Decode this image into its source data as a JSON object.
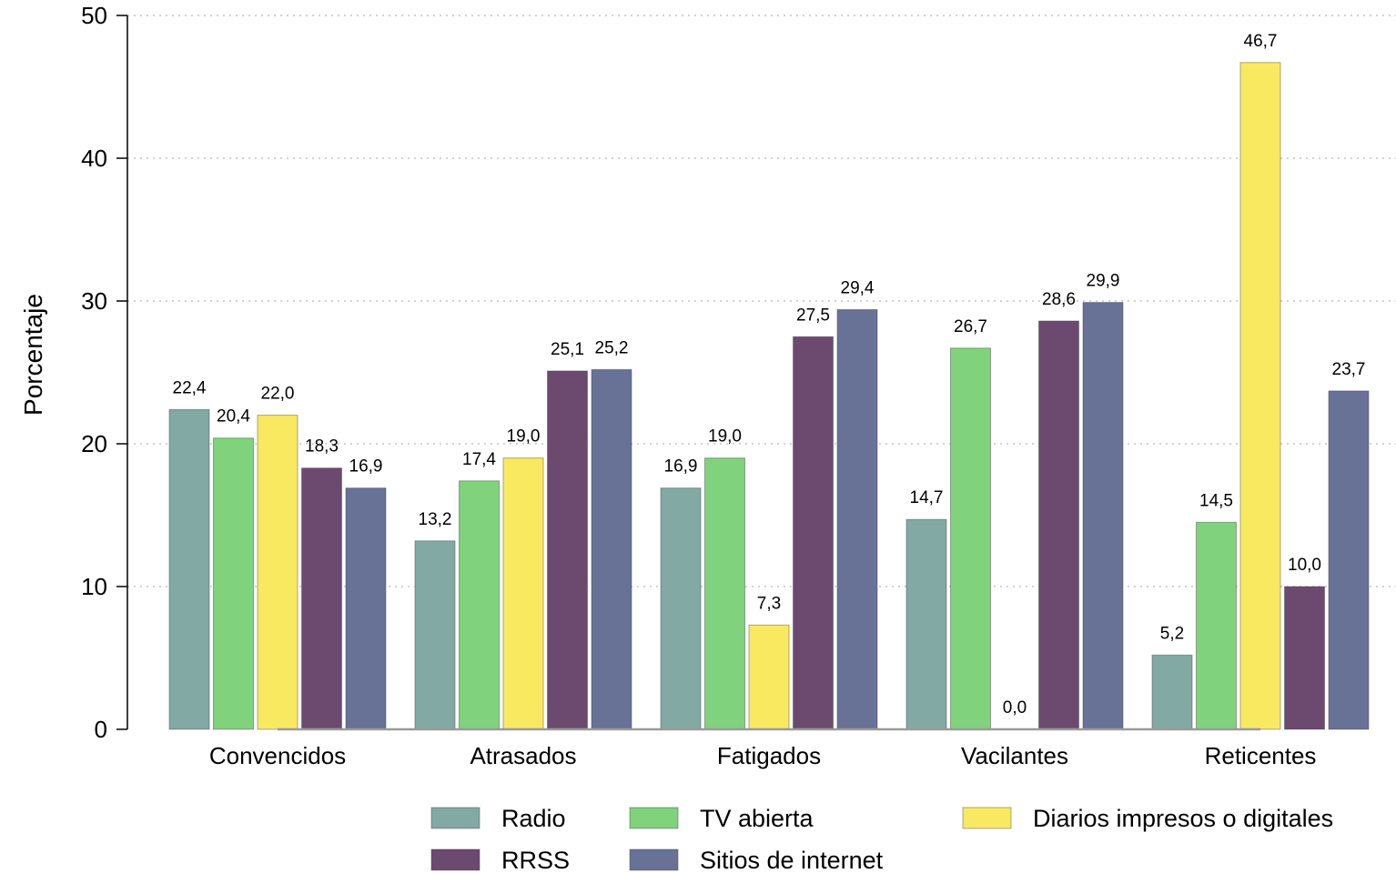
{
  "chart_data": {
    "type": "bar",
    "ylabel": "Porcentaje",
    "xlabel": "",
    "ylim": [
      0,
      50
    ],
    "yticks": [
      0,
      10,
      20,
      30,
      40,
      50
    ],
    "grid": "horizontal-dotted",
    "legend_position": "bottom",
    "categories": [
      "Convencidos",
      "Atrasados",
      "Fatigados",
      "Vacilantes",
      "Reticentes"
    ],
    "series": [
      {
        "name": "Radio",
        "color": "#82a9a3",
        "values": [
          22.4,
          13.2,
          16.9,
          14.7,
          5.2
        ],
        "labels": [
          "22,4",
          "13,2",
          "16,9",
          "14,7",
          "5,2"
        ]
      },
      {
        "name": "TV abierta",
        "color": "#80d27c",
        "values": [
          20.4,
          17.4,
          19.0,
          26.7,
          14.5
        ],
        "labels": [
          "20,4",
          "17,4",
          "19,0",
          "26,7",
          "14,5"
        ]
      },
      {
        "name": "Diarios impresos o digitales",
        "color": "#f9e961",
        "values": [
          22.0,
          19.0,
          7.3,
          0.0,
          46.7
        ],
        "labels": [
          "22,0",
          "19,0",
          "7,3",
          "0,0",
          "46,7"
        ]
      },
      {
        "name": "RRSS",
        "color": "#6c4a70",
        "values": [
          18.3,
          25.1,
          27.5,
          28.6,
          10.0
        ],
        "labels": [
          "18,3",
          "25,1",
          "27,5",
          "28,6",
          "10,0"
        ]
      },
      {
        "name": "Sitios de internet",
        "color": "#687196",
        "values": [
          16.9,
          25.2,
          29.4,
          29.9,
          23.7
        ],
        "labels": [
          "16,9",
          "25,2",
          "29,4",
          "29,9",
          "23,7"
        ]
      }
    ]
  }
}
